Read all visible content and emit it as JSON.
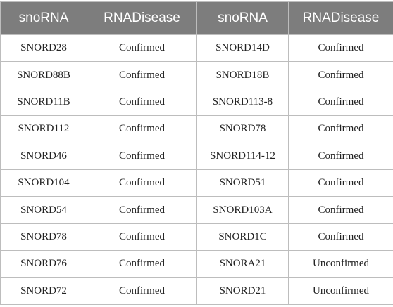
{
  "table": {
    "header": [
      "snoRNA",
      "RNADisease",
      "snoRNA",
      "RNADisease"
    ],
    "rows": [
      [
        "SNORD28",
        "Confirmed",
        "SNORD14D",
        "Confirmed"
      ],
      [
        "SNORD88B",
        "Confirmed",
        "SNORD18B",
        "Confirmed"
      ],
      [
        "SNORD11B",
        "Confirmed",
        "SNORD113-8",
        "Confirmed"
      ],
      [
        "SNORD112",
        "Confirmed",
        "SNORD78",
        "Confirmed"
      ],
      [
        "SNORD46",
        "Confirmed",
        "SNORD114-12",
        "Confirmed"
      ],
      [
        "SNORD104",
        "Confirmed",
        "SNORD51",
        "Confirmed"
      ],
      [
        "SNORD54",
        "Confirmed",
        "SNORD103A",
        "Confirmed"
      ],
      [
        "SNORD78",
        "Confirmed",
        "SNORD1C",
        "Confirmed"
      ],
      [
        "SNORD76",
        "Confirmed",
        "SNORA21",
        "Unconfirmed"
      ],
      [
        "SNORD72",
        "Confirmed",
        "SNORD21",
        "Unconfirmed"
      ]
    ]
  }
}
